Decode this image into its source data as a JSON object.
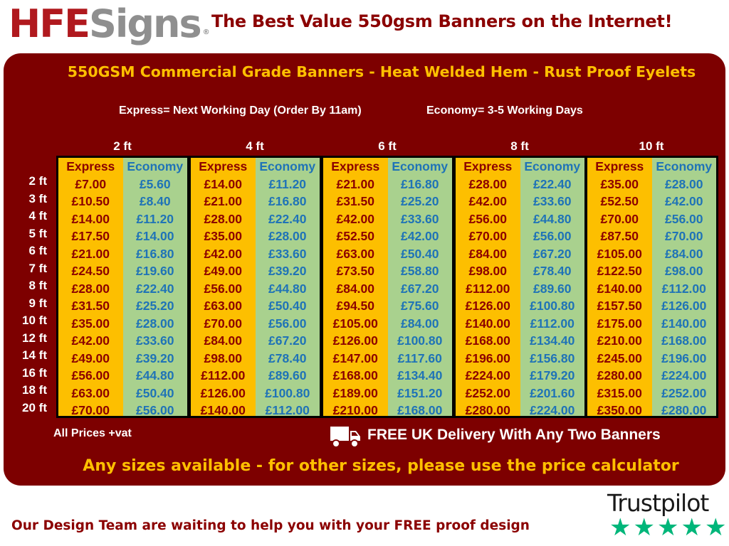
{
  "header": {
    "logo_part1": "HFE",
    "logo_part2": "Signs",
    "logo_mark": "®",
    "headline": "The Best Value 550gsm Banners on the Internet!"
  },
  "panel": {
    "title": "550GSM Commercial Grade Banners - Heat Welded Hem - Rust Proof Eyelets",
    "express_note": "Express= Next Working Day (Order By 11am)",
    "economy_note": "Economy= 3-5 Working Days",
    "colors": {
      "panel": "#7d0000",
      "express": "#fdbf00",
      "economy": "#a9d18e",
      "accent": "#ffc000"
    }
  },
  "table": {
    "widths": [
      "2 ft",
      "4 ft",
      "6 ft",
      "8 ft",
      "10 ft"
    ],
    "express_label": "Express",
    "economy_label": "Economy",
    "heights": [
      "2 ft",
      "3 ft",
      "4 ft",
      "5 ft",
      "6 ft",
      "7 ft",
      "8 ft",
      "9 ft",
      "10 ft",
      "12 ft",
      "14 ft",
      "16 ft",
      "18 ft",
      "20 ft"
    ],
    "rows": [
      [
        "£7.00",
        "£5.60",
        "£14.00",
        "£11.20",
        "£21.00",
        "£16.80",
        "£28.00",
        "£22.40",
        "£35.00",
        "£28.00"
      ],
      [
        "£10.50",
        "£8.40",
        "£21.00",
        "£16.80",
        "£31.50",
        "£25.20",
        "£42.00",
        "£33.60",
        "£52.50",
        "£42.00"
      ],
      [
        "£14.00",
        "£11.20",
        "£28.00",
        "£22.40",
        "£42.00",
        "£33.60",
        "£56.00",
        "£44.80",
        "£70.00",
        "£56.00"
      ],
      [
        "£17.50",
        "£14.00",
        "£35.00",
        "£28.00",
        "£52.50",
        "£42.00",
        "£70.00",
        "£56.00",
        "£87.50",
        "£70.00"
      ],
      [
        "£21.00",
        "£16.80",
        "£42.00",
        "£33.60",
        "£63.00",
        "£50.40",
        "£84.00",
        "£67.20",
        "£105.00",
        "£84.00"
      ],
      [
        "£24.50",
        "£19.60",
        "£49.00",
        "£39.20",
        "£73.50",
        "£58.80",
        "£98.00",
        "£78.40",
        "£122.50",
        "£98.00"
      ],
      [
        "£28.00",
        "£22.40",
        "£56.00",
        "£44.80",
        "£84.00",
        "£67.20",
        "£112.00",
        "£89.60",
        "£140.00",
        "£112.00"
      ],
      [
        "£31.50",
        "£25.20",
        "£63.00",
        "£50.40",
        "£94.50",
        "£75.60",
        "£126.00",
        "£100.80",
        "£157.50",
        "£126.00"
      ],
      [
        "£35.00",
        "£28.00",
        "£70.00",
        "£56.00",
        "£105.00",
        "£84.00",
        "£140.00",
        "£112.00",
        "£175.00",
        "£140.00"
      ],
      [
        "£42.00",
        "£33.60",
        "£84.00",
        "£67.20",
        "£126.00",
        "£100.80",
        "£168.00",
        "£134.40",
        "£210.00",
        "£168.00"
      ],
      [
        "£49.00",
        "£39.20",
        "£98.00",
        "£78.40",
        "£147.00",
        "£117.60",
        "£196.00",
        "£156.80",
        "£245.00",
        "£196.00"
      ],
      [
        "£56.00",
        "£44.80",
        "£112.00",
        "£89.60",
        "£168.00",
        "£134.40",
        "£224.00",
        "£179.20",
        "£280.00",
        "£224.00"
      ],
      [
        "£63.00",
        "£50.40",
        "£126.00",
        "£100.80",
        "£189.00",
        "£151.20",
        "£252.00",
        "£201.60",
        "£315.00",
        "£252.00"
      ],
      [
        "£70.00",
        "£56.00",
        "£140.00",
        "£112.00",
        "£210.00",
        "£168.00",
        "£280.00",
        "£224.00",
        "£350.00",
        "£280.00"
      ]
    ]
  },
  "footer": {
    "vat_note": "All Prices +vat",
    "delivery": "FREE UK Delivery With Any Two Banners",
    "delivery_icon": "truck-icon",
    "any_sizes": "Any sizes available - for other sizes, please use the price calculator",
    "design_team": "Our Design Team are waiting to help you with your FREE proof design",
    "trustpilot": "Trustpilot",
    "trustpilot_stars": 5
  }
}
